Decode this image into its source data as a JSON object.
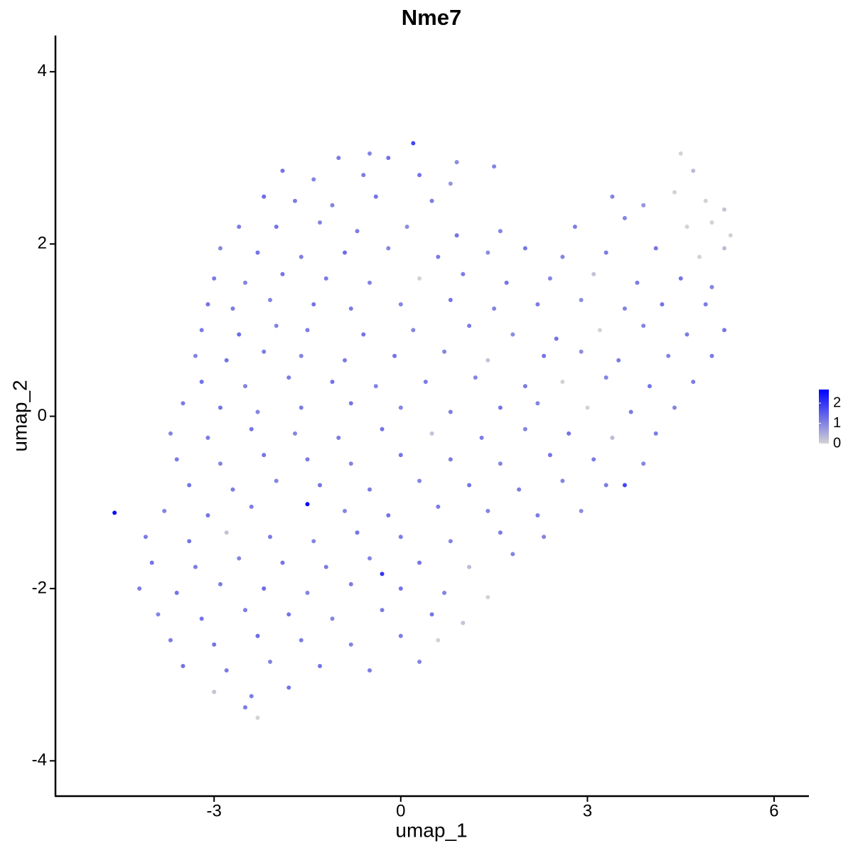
{
  "chart_data": {
    "type": "scatter",
    "title": "Nme7",
    "x_label": "umap_1",
    "y_label": "umap_2",
    "xlim": [
      -5.55,
      6.56
    ],
    "ylim": [
      -4.41,
      4.42
    ],
    "xticks": [
      -3,
      0,
      3,
      6
    ],
    "yticks": [
      -4,
      -2,
      0,
      2,
      4
    ],
    "color_low": "#d3d3d3",
    "color_high": "#0000ff",
    "color_range": [
      0,
      2.67
    ],
    "colorbar_ticks": [
      0,
      1,
      2
    ],
    "x": [
      -1.0,
      -0.5,
      -0.2,
      0.2,
      0.9,
      -1.9,
      -1.4,
      -0.6,
      0.3,
      0.8,
      1.5,
      4.5,
      4.7,
      -2.2,
      -1.7,
      -1.1,
      -0.4,
      0.5,
      3.4,
      3.9,
      4.4,
      4.9,
      5.2,
      -2.6,
      -2.0,
      -1.3,
      -0.7,
      0.1,
      0.9,
      1.6,
      2.8,
      3.6,
      4.6,
      5.0,
      5.3,
      -2.9,
      -2.3,
      -1.6,
      -0.9,
      -0.2,
      0.6,
      1.4,
      2.0,
      2.6,
      3.3,
      4.1,
      4.8,
      5.2,
      -3.0,
      -2.5,
      -1.9,
      -1.2,
      -0.5,
      0.3,
      1.0,
      1.7,
      2.4,
      3.1,
      3.8,
      4.5,
      5.0,
      -3.1,
      -2.7,
      -2.1,
      -1.4,
      -0.8,
      0.0,
      0.8,
      1.5,
      2.2,
      2.9,
      3.6,
      4.2,
      4.9,
      -3.2,
      -2.6,
      -2.0,
      -1.5,
      -0.6,
      0.2,
      1.1,
      1.8,
      2.5,
      3.2,
      3.9,
      4.6,
      5.2,
      -3.3,
      -2.8,
      -2.2,
      -1.6,
      -0.9,
      -0.1,
      0.7,
      1.4,
      2.3,
      2.9,
      3.5,
      4.3,
      5.0,
      -3.2,
      -2.5,
      -1.8,
      -1.1,
      -0.4,
      0.4,
      1.2,
      2.0,
      2.6,
      3.3,
      4.0,
      4.7,
      -3.5,
      -2.9,
      -2.3,
      -1.6,
      -0.8,
      0.0,
      0.8,
      1.6,
      2.2,
      3.0,
      3.7,
      4.4,
      -3.7,
      -3.1,
      -2.4,
      -1.7,
      -1.0,
      -0.3,
      0.5,
      1.3,
      2.0,
      2.7,
      3.4,
      4.1,
      -3.6,
      -2.9,
      -2.2,
      -1.5,
      -0.8,
      0.0,
      0.8,
      1.6,
      2.4,
      3.1,
      3.9,
      -3.4,
      -2.7,
      -2.0,
      -1.3,
      -0.5,
      0.3,
      1.1,
      1.9,
      2.6,
      3.3,
      3.6,
      -4.6,
      -3.8,
      -3.1,
      -2.4,
      -1.5,
      -0.9,
      -0.2,
      0.6,
      1.4,
      2.2,
      2.9,
      -4.1,
      -3.4,
      -2.8,
      -2.1,
      -1.4,
      -0.7,
      0.0,
      0.8,
      1.6,
      2.3,
      -4.0,
      -3.3,
      -2.6,
      -1.9,
      -1.2,
      -0.5,
      0.3,
      1.1,
      1.8,
      -4.2,
      -3.6,
      -2.9,
      -2.2,
      -1.5,
      -0.8,
      -0.3,
      0.0,
      0.7,
      1.4,
      -3.9,
      -3.2,
      -2.5,
      -1.8,
      -1.1,
      -0.3,
      0.5,
      1.0,
      -3.7,
      -3.0,
      -2.3,
      -1.6,
      -0.8,
      0.0,
      0.6,
      -3.5,
      -2.8,
      -2.1,
      -1.3,
      -0.5,
      0.3,
      -3.0,
      -2.4,
      -1.8,
      -2.3,
      -2.5
    ],
    "y": [
      3.0,
      3.05,
      3.0,
      3.17,
      2.95,
      2.85,
      2.75,
      2.8,
      2.8,
      2.7,
      2.9,
      3.05,
      2.85,
      2.55,
      2.5,
      2.45,
      2.55,
      2.5,
      2.55,
      2.45,
      2.6,
      2.5,
      2.4,
      2.2,
      2.2,
      2.25,
      2.15,
      2.2,
      2.1,
      2.15,
      2.2,
      2.3,
      2.2,
      2.25,
      2.1,
      1.95,
      1.9,
      1.85,
      1.9,
      1.95,
      1.85,
      1.9,
      1.95,
      1.85,
      1.9,
      1.95,
      1.85,
      1.95,
      1.6,
      1.55,
      1.65,
      1.6,
      1.55,
      1.6,
      1.65,
      1.55,
      1.6,
      1.65,
      1.55,
      1.6,
      1.5,
      1.3,
      1.25,
      1.35,
      1.3,
      1.25,
      1.3,
      1.35,
      1.25,
      1.3,
      1.35,
      1.25,
      1.3,
      1.3,
      1.0,
      0.95,
      1.05,
      1.0,
      0.95,
      1.0,
      1.05,
      0.95,
      0.9,
      1.0,
      1.05,
      0.95,
      1.0,
      0.7,
      0.65,
      0.75,
      0.7,
      0.65,
      0.7,
      0.75,
      0.65,
      0.7,
      0.75,
      0.65,
      0.7,
      0.7,
      0.4,
      0.35,
      0.45,
      0.4,
      0.35,
      0.4,
      0.45,
      0.35,
      0.4,
      0.45,
      0.35,
      0.4,
      0.15,
      0.1,
      0.05,
      0.1,
      0.15,
      0.1,
      0.05,
      0.1,
      0.15,
      0.1,
      0.05,
      0.1,
      -0.2,
      -0.25,
      -0.15,
      -0.2,
      -0.25,
      -0.15,
      -0.2,
      -0.25,
      -0.15,
      -0.2,
      -0.25,
      -0.2,
      -0.5,
      -0.55,
      -0.45,
      -0.5,
      -0.55,
      -0.45,
      -0.5,
      -0.55,
      -0.45,
      -0.5,
      -0.55,
      -0.8,
      -0.85,
      -0.75,
      -0.8,
      -0.85,
      -0.75,
      -0.8,
      -0.85,
      -0.75,
      -0.8,
      -0.8,
      -1.12,
      -1.1,
      -1.15,
      -1.05,
      -1.02,
      -1.1,
      -1.15,
      -1.05,
      -1.1,
      -1.15,
      -1.1,
      -1.4,
      -1.45,
      -1.35,
      -1.4,
      -1.45,
      -1.35,
      -1.4,
      -1.45,
      -1.35,
      -1.4,
      -1.7,
      -1.75,
      -1.65,
      -1.7,
      -1.75,
      -1.65,
      -1.7,
      -1.75,
      -1.6,
      -2.0,
      -2.05,
      -1.95,
      -2.0,
      -2.05,
      -1.95,
      -1.83,
      -2.0,
      -2.05,
      -2.1,
      -2.3,
      -2.35,
      -2.25,
      -2.3,
      -2.35,
      -2.25,
      -2.3,
      -2.4,
      -2.6,
      -2.65,
      -2.55,
      -2.6,
      -2.65,
      -2.55,
      -2.6,
      -2.9,
      -2.95,
      -2.85,
      -2.9,
      -2.95,
      -2.85,
      -3.2,
      -3.25,
      -3.15,
      -3.5,
      -3.38
    ],
    "values": [
      1.1,
      1.0,
      1.2,
      1.8,
      0.9,
      1.2,
      1.0,
      1.1,
      1.2,
      0.8,
      1.0,
      0,
      0.3,
      1.3,
      1.1,
      1.0,
      1.2,
      1.1,
      1.0,
      0.8,
      0,
      0,
      0.2,
      1.1,
      1.2,
      1.0,
      1.1,
      0.9,
      1.2,
      1.0,
      1.1,
      1.0,
      0,
      0,
      0,
      1.0,
      1.2,
      1.1,
      1.3,
      1.0,
      1.1,
      0.9,
      1.2,
      1.0,
      1.1,
      1.2,
      0,
      0.3,
      1.1,
      1.0,
      1.2,
      1.1,
      1.0,
      0,
      1.1,
      1.2,
      1.0,
      0.2,
      1.1,
      1.2,
      1.0,
      1.2,
      1.1,
      1.0,
      1.2,
      1.1,
      1.0,
      1.2,
      1.0,
      1.1,
      0.9,
      1.0,
      1.2,
      1.1,
      1.1,
      1.3,
      1.0,
      1.1,
      1.2,
      1.0,
      1.1,
      0.9,
      1.2,
      0,
      1.0,
      1.1,
      1.2,
      1.0,
      1.2,
      1.1,
      1.0,
      1.1,
      1.2,
      1.0,
      0.2,
      1.2,
      0.9,
      1.1,
      1.0,
      1.1,
      1.2,
      1.0,
      1.1,
      1.2,
      1.0,
      1.1,
      1.0,
      1.1,
      0,
      1.0,
      1.2,
      1.1,
      1.1,
      1.2,
      1.0,
      1.1,
      1.2,
      1.0,
      1.1,
      1.2,
      1.0,
      0,
      1.1,
      1.0,
      1.0,
      1.1,
      1.2,
      1.0,
      1.1,
      1.2,
      0.2,
      1.1,
      1.0,
      1.2,
      0.3,
      1.1,
      1.1,
      1.0,
      1.2,
      1.1,
      1.0,
      1.2,
      1.1,
      1.0,
      1.2,
      1.1,
      1.0,
      1.2,
      1.1,
      1.0,
      1.2,
      1.1,
      1.0,
      1.2,
      1.1,
      1.0,
      1.1,
      1.8,
      2.5,
      1.0,
      1.2,
      1.1,
      2.6,
      1.0,
      1.2,
      1.1,
      1.0,
      1.1,
      0.9,
      1.1,
      1.2,
      0.2,
      1.1,
      1.0,
      1.2,
      1.1,
      1.0,
      1.1,
      1.0,
      1.2,
      1.1,
      1.0,
      1.2,
      1.1,
      1.0,
      1.2,
      0.3,
      1.0,
      1.1,
      1.2,
      1.1,
      1.3,
      1.0,
      1.1,
      2.0,
      1.2,
      1.0,
      0,
      1.0,
      1.2,
      1.1,
      1.2,
      1.0,
      1.1,
      1.2,
      0.2,
      1.1,
      1.2,
      1.3,
      1.1,
      1.0,
      1.1,
      0,
      1.2,
      1.1,
      1.0,
      1.2,
      1.1,
      1.0,
      0.2,
      1.1,
      1.2,
      0,
      1.1
    ]
  }
}
